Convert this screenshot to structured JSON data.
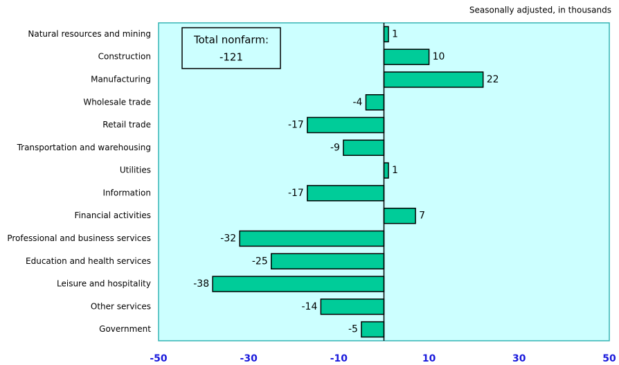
{
  "chart_data": {
    "type": "barh",
    "subtitle": "Seasonally adjusted, in thousands",
    "annotation": {
      "label": "Total nonfarm:",
      "total": "-121"
    },
    "categories": [
      "Natural resources and mining",
      "Construction",
      "Manufacturing",
      "Wholesale trade",
      "Retail trade",
      "Transportation and warehousing",
      "Utilities",
      "Information",
      "Financial activities",
      "Professional and business services",
      "Education and health services",
      "Leisure and hospitality",
      "Other services",
      "Government"
    ],
    "values": [
      1,
      10,
      22,
      -4,
      -17,
      -9,
      1,
      -17,
      7,
      -32,
      -25,
      -38,
      -14,
      -5
    ],
    "color": "#00cc99",
    "xlim": [
      -50,
      50
    ],
    "xticks": [
      -50,
      -30,
      -10,
      10,
      30,
      50
    ],
    "plot_background": "#ccffff"
  }
}
